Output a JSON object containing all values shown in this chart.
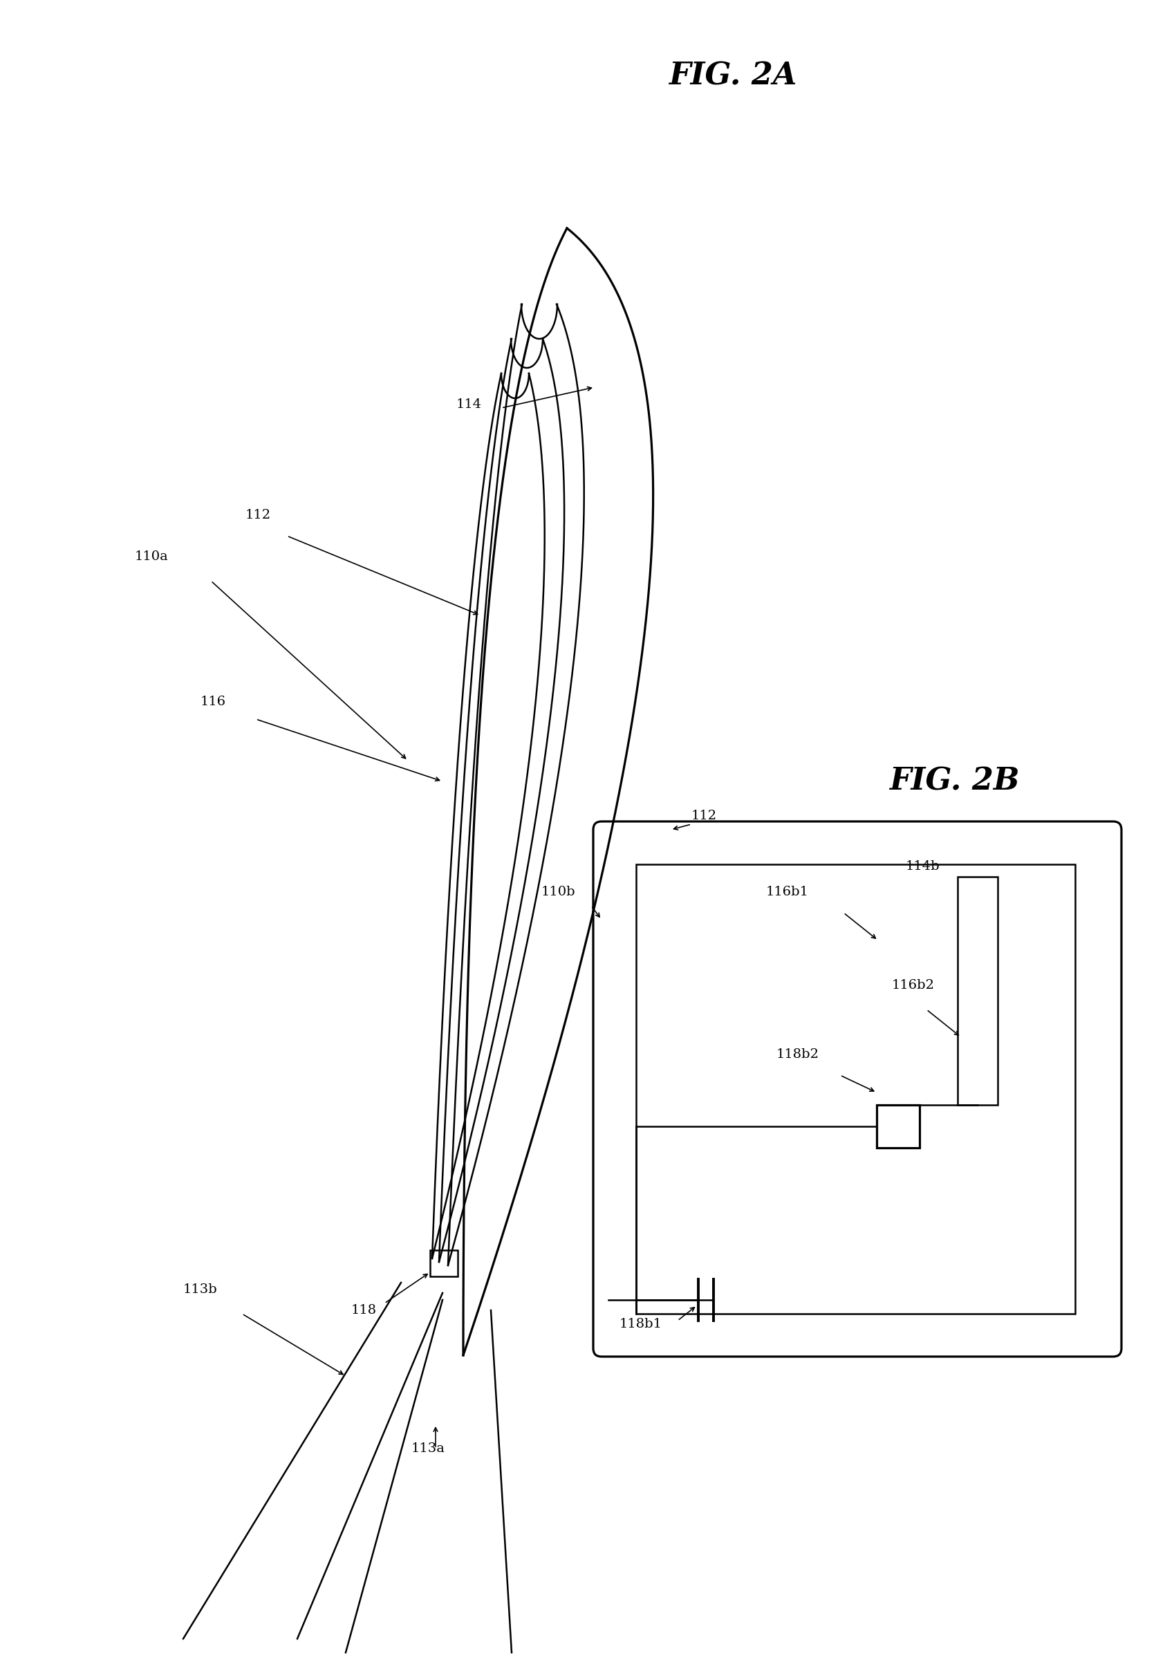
{
  "fig_label_2A": "FIG. 2A",
  "fig_label_2B": "FIG. 2B",
  "label_110a": "110a",
  "label_110b": "110b",
  "label_112": "112",
  "label_112b": "112",
  "label_113a": "113a",
  "label_113b": "113b",
  "label_114": "114",
  "label_116": "116",
  "label_118": "118",
  "label_114b": "114b",
  "label_116b1": "116b1",
  "label_116b2": "116b2",
  "label_118b1": "118b1",
  "label_118b2": "118b2",
  "line_color": "#000000",
  "bg_color": "#ffffff",
  "linewidth": 1.8,
  "fontsize": 14
}
